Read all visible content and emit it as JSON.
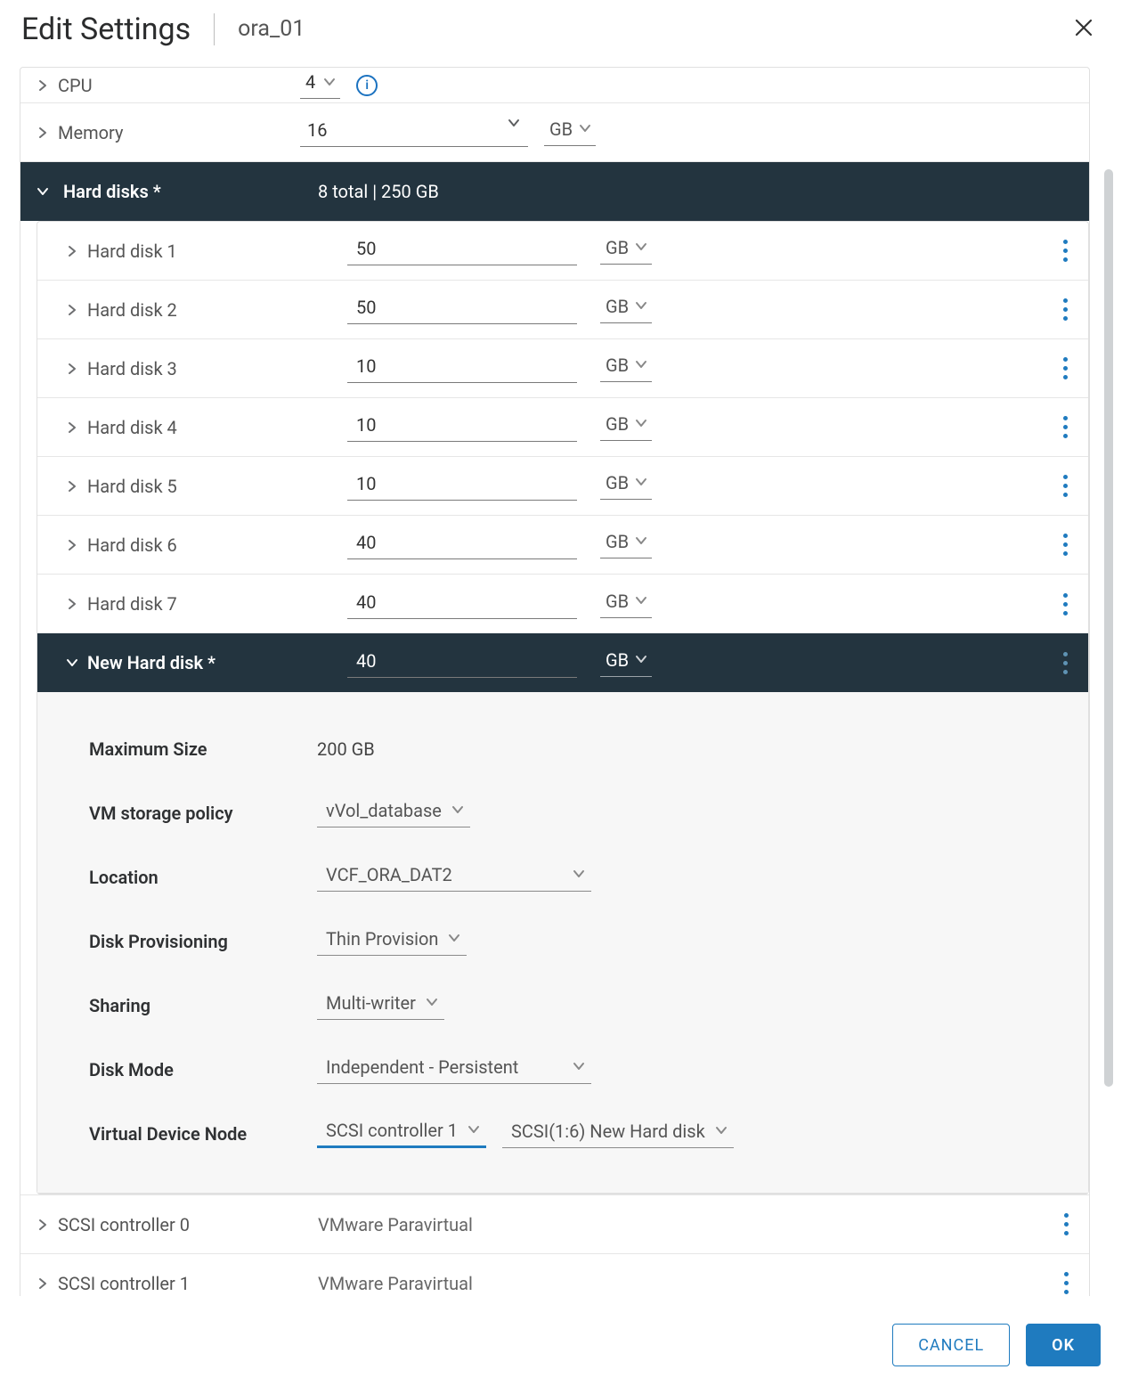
{
  "dialog": {
    "title": "Edit Settings",
    "vm_name": "ora_01"
  },
  "cpu": {
    "label": "CPU",
    "value": "4",
    "info_glyph": "i"
  },
  "memory": {
    "label": "Memory",
    "value": "16",
    "unit": "GB"
  },
  "hard_disks_section": {
    "label": "Hard disks *",
    "summary": "8 total | 250 GB"
  },
  "disks": [
    {
      "label": "Hard disk 1",
      "size": "50",
      "unit": "GB"
    },
    {
      "label": "Hard disk 2",
      "size": "50",
      "unit": "GB"
    },
    {
      "label": "Hard disk 3",
      "size": "10",
      "unit": "GB"
    },
    {
      "label": "Hard disk 4",
      "size": "10",
      "unit": "GB"
    },
    {
      "label": "Hard disk 5",
      "size": "10",
      "unit": "GB"
    },
    {
      "label": "Hard disk 6",
      "size": "40",
      "unit": "GB"
    },
    {
      "label": "Hard disk 7",
      "size": "40",
      "unit": "GB"
    }
  ],
  "new_disk": {
    "label": "New Hard disk *",
    "size": "40",
    "unit": "GB",
    "details": {
      "max_size_label": "Maximum Size",
      "max_size_value": "200 GB",
      "storage_policy_label": "VM storage policy",
      "storage_policy_value": "vVol_database",
      "location_label": "Location",
      "location_value": "VCF_ORA_DAT2",
      "provisioning_label": "Disk Provisioning",
      "provisioning_value": "Thin Provision",
      "sharing_label": "Sharing",
      "sharing_value": "Multi-writer",
      "disk_mode_label": "Disk Mode",
      "disk_mode_value": "Independent - Persistent",
      "vdn_label": "Virtual Device Node",
      "vdn_controller": "SCSI controller 1",
      "vdn_node": "SCSI(1:6) New Hard disk"
    }
  },
  "controllers": [
    {
      "label": "SCSI controller 0",
      "value": "VMware Paravirtual"
    },
    {
      "label": "SCSI controller 1",
      "value": "VMware Paravirtual"
    }
  ],
  "footer": {
    "cancel": "CANCEL",
    "ok": "OK"
  },
  "colors": {
    "header_bg": "#23343f",
    "accent_blue": "#1f7bbf",
    "border": "#e0e0e0",
    "details_bg": "#f7f7f7",
    "text_muted": "#555"
  }
}
